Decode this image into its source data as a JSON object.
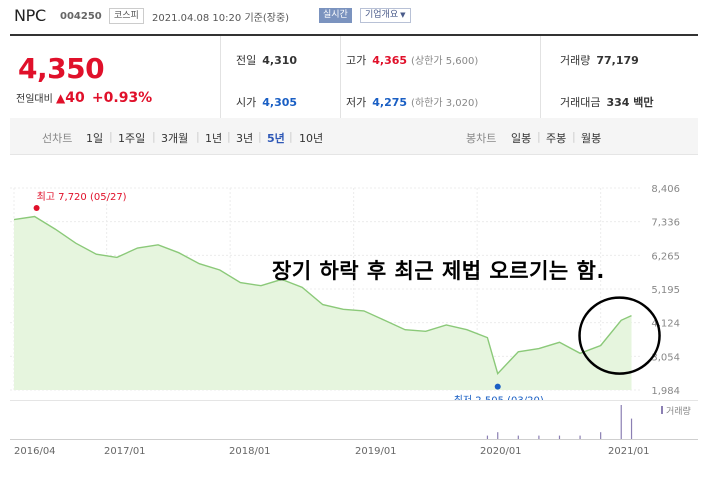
{
  "header": {
    "stock_name": "NPC",
    "stock_code": "004250",
    "market": "코스피",
    "timestamp": "2021.04.08 10:20",
    "time_basis": "기준(장중)",
    "realtime_badge": "실시간",
    "company_info_button": "기업개요",
    "company_info_icon": "chevron-down-icon"
  },
  "quote": {
    "current_price": "4,350",
    "change_label": "전일대비",
    "change_amount": "40",
    "change_percent": "+0.93%",
    "up_color": "#e0102a",
    "down_color": "#1a5fc4",
    "prev_close_label": "전일",
    "prev_close": "4,310",
    "open_label": "시가",
    "open": "4,305",
    "high_label": "고가",
    "high": "4,365",
    "upper_limit_label": "(상한가 5,600)",
    "low_label": "저가",
    "low": "4,275",
    "lower_limit_label": "(하한가 3,020)",
    "volume_label": "거래량",
    "volume": "77,179",
    "turnover_label": "거래대금",
    "turnover": "334 백만"
  },
  "tabs": {
    "line_chart_label": "선차트",
    "periods": [
      "1일",
      "1주일",
      "3개월",
      "1년",
      "3년",
      "5년",
      "10년"
    ],
    "selected_period": "5년",
    "candle_chart_label": "봉차트",
    "candle_periods": [
      "일봉",
      "주봉",
      "월봉"
    ]
  },
  "chart_data": {
    "type": "area",
    "yticks": [
      "8,406",
      "7,336",
      "6,265",
      "5,195",
      "4,124",
      "3,054",
      "1,984"
    ],
    "ylim": [
      1984,
      8406
    ],
    "xticks": [
      "2016/04",
      "2017/01",
      "2018/01",
      "2019/01",
      "2020/01",
      "2021/01"
    ],
    "high_label": "최고 7,720 (05/27)",
    "low_label": "최저 2,505 (03/20)",
    "volume_label": "거래량",
    "series": [
      {
        "x": [
          "2016/04",
          "2016/06",
          "2016/08",
          "2016/10",
          "2016/12",
          "2017/02",
          "2017/04",
          "2017/06",
          "2017/08",
          "2017/10",
          "2017/12",
          "2018/02",
          "2018/04",
          "2018/06",
          "2018/08",
          "2018/10",
          "2018/12",
          "2019/02",
          "2019/04",
          "2019/06",
          "2019/08",
          "2019/10",
          "2019/12",
          "2020/02",
          "2020/03",
          "2020/05",
          "2020/07",
          "2020/09",
          "2020/11",
          "2021/01",
          "2021/03",
          "2021/04"
        ],
        "values": [
          7400,
          7500,
          7100,
          6650,
          6300,
          6200,
          6500,
          6600,
          6350,
          6000,
          5800,
          5400,
          5300,
          5500,
          5250,
          4700,
          4550,
          4500,
          4200,
          3900,
          3850,
          4050,
          3900,
          3650,
          2505,
          3200,
          3300,
          3500,
          3150,
          3400,
          4200,
          4350
        ]
      }
    ],
    "volume_values": [
      0,
      0,
      0,
      0,
      0,
      0,
      0,
      0,
      0,
      0,
      0,
      0,
      0,
      0,
      0,
      0,
      0,
      0,
      0,
      0,
      0,
      0,
      0,
      1,
      2,
      1,
      1,
      1,
      1,
      2,
      10,
      6
    ],
    "line_color": "#8bc979",
    "fill_color": "#e6f5de",
    "volume_color": "#8b7fb3"
  },
  "annotation": {
    "text": "장기 하락 후 최근 제법 오르기는 함.",
    "circle_color": "#000000"
  }
}
